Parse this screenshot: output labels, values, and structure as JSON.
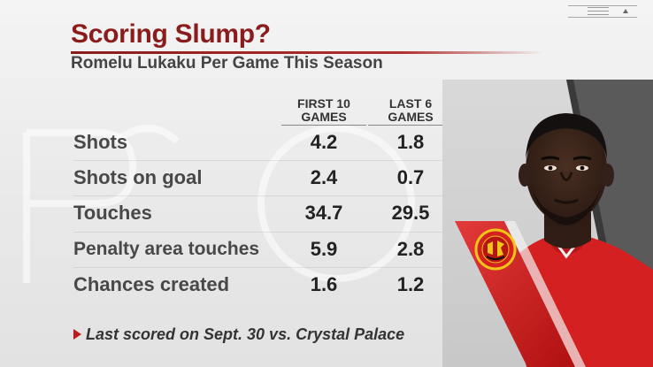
{
  "title": "Scoring Slump?",
  "subtitle": "Romelu Lukaku Per Game This Season",
  "columns": {
    "first": [
      "FIRST 10",
      "GAMES"
    ],
    "last": [
      "LAST 6",
      "GAMES"
    ]
  },
  "rows": [
    {
      "label": "Shots",
      "first": "4.2",
      "last": "1.8"
    },
    {
      "label": "Shots on goal",
      "first": "2.4",
      "last": "0.7"
    },
    {
      "label": "Touches",
      "first": "34.7",
      "last": "29.5"
    },
    {
      "label": "Penalty area touches",
      "first": "5.9",
      "last": "2.8"
    },
    {
      "label": "Chances created",
      "first": "1.6",
      "last": "1.2"
    }
  ],
  "footnote": "Last scored on Sept. 30 vs. Crystal Palace",
  "colors": {
    "title": "#8a1c1c",
    "accent_red": "#c0191d",
    "jersey_red": "#d42020",
    "text_dark": "#222222"
  },
  "icons": {
    "menu": "hamburger-lines",
    "arrow": "triangle-up",
    "bullet": "triangle-right"
  }
}
